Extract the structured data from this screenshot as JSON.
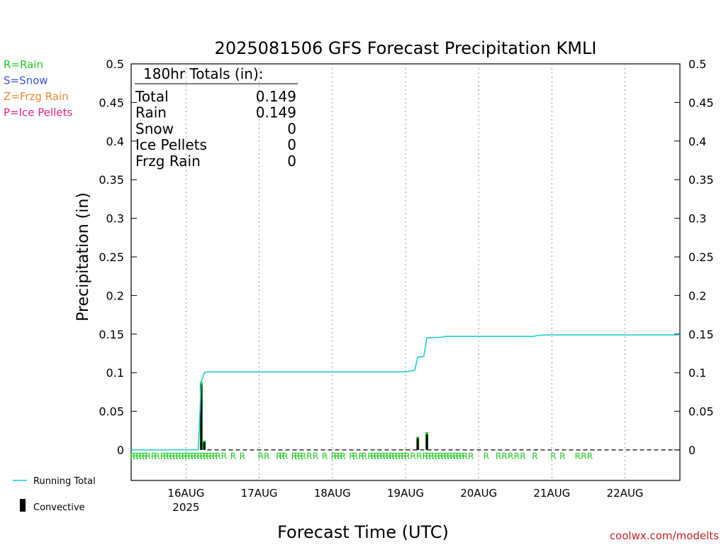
{
  "title": "2025081506 GFS Forecast Precipitation KMLI",
  "legend_ptypes": [
    {
      "label": "R=Rain",
      "color": "#22cc22"
    },
    {
      "label": "S=Snow",
      "color": "#3355ee"
    },
    {
      "label": "Z=Frzg Rain",
      "color": "#ee8833"
    },
    {
      "label": "P=Ice Pellets",
      "color": "#ee2288"
    }
  ],
  "totals": {
    "header": "180hr Totals (in):",
    "rows": [
      {
        "label": "Total",
        "value": "0.149"
      },
      {
        "label": "Rain",
        "value": "0.149"
      },
      {
        "label": "Snow",
        "value": "0"
      },
      {
        "label": "Ice Pellets",
        "value": "0"
      },
      {
        "label": "Frzg Rain",
        "value": "0"
      }
    ]
  },
  "legend_bottom": {
    "running_total": "Running Total",
    "convective": "Convective",
    "running_total_color": "#22cccc"
  },
  "watermark": "coolwx.com/modelts",
  "watermark_color": "#cc2222",
  "chart_data": {
    "type": "line",
    "ylabel": "Precipitation (in)",
    "xlabel": "Forecast Time (UTC)",
    "ylim": [
      0,
      0.5
    ],
    "yticks": [
      "0",
      "0.05",
      "0.1",
      "0.15",
      "0.2",
      "0.25",
      "0.3",
      "0.35",
      "0.4",
      "0.45",
      "0.5"
    ],
    "xlim_hours": [
      0,
      180
    ],
    "xticks": [
      {
        "hour": 18,
        "label": "16AUG",
        "sublabel": "2025"
      },
      {
        "hour": 42,
        "label": "17AUG",
        "sublabel": ""
      },
      {
        "hour": 66,
        "label": "18AUG",
        "sublabel": ""
      },
      {
        "hour": 90,
        "label": "19AUG",
        "sublabel": ""
      },
      {
        "hour": 114,
        "label": "20AUG",
        "sublabel": ""
      },
      {
        "hour": 138,
        "label": "21AUG",
        "sublabel": ""
      },
      {
        "hour": 162,
        "label": "22AUG",
        "sublabel": ""
      }
    ],
    "grid": "vertical-dotted",
    "running_total": {
      "name": "Running Total",
      "hours": [
        0,
        22,
        23,
        24,
        25,
        90,
        93,
        94,
        96,
        97,
        102,
        103,
        132,
        133,
        136,
        180
      ],
      "values": [
        0,
        0,
        0.088,
        0.1,
        0.101,
        0.101,
        0.103,
        0.12,
        0.121,
        0.145,
        0.146,
        0.147,
        0.147,
        0.148,
        0.149,
        0.149
      ]
    },
    "precip_bars": {
      "hours": [
        23,
        24,
        90,
        94,
        97,
        133
      ],
      "values": [
        0.088,
        0.012,
        0.001,
        0.017,
        0.023,
        0.001
      ]
    },
    "convective_bars": {
      "name": "Convective",
      "hours": [
        23,
        24,
        94,
        97
      ],
      "values": [
        0.085,
        0.01,
        0.015,
        0.02
      ]
    },
    "ptype_markers": {
      "symbol": "R",
      "hours": [
        0,
        1,
        2,
        3,
        4,
        5,
        7,
        8,
        10,
        11,
        12,
        13,
        14,
        15,
        16,
        17,
        18,
        19,
        20,
        21,
        22,
        23,
        24,
        25,
        26,
        27,
        28,
        30,
        33,
        36,
        42,
        44,
        48,
        49,
        50,
        53,
        54,
        55,
        56,
        58,
        60,
        63,
        66,
        67,
        68,
        69,
        72,
        73,
        75,
        76,
        78,
        79,
        80,
        81,
        82,
        83,
        84,
        85,
        86,
        87,
        88,
        89,
        90,
        92,
        94,
        96,
        97,
        98,
        99,
        100,
        101,
        102,
        103,
        104,
        105,
        106,
        107,
        108,
        109,
        111,
        116,
        120,
        122,
        124,
        126,
        128,
        132,
        138,
        141,
        146,
        148,
        150
      ]
    }
  }
}
